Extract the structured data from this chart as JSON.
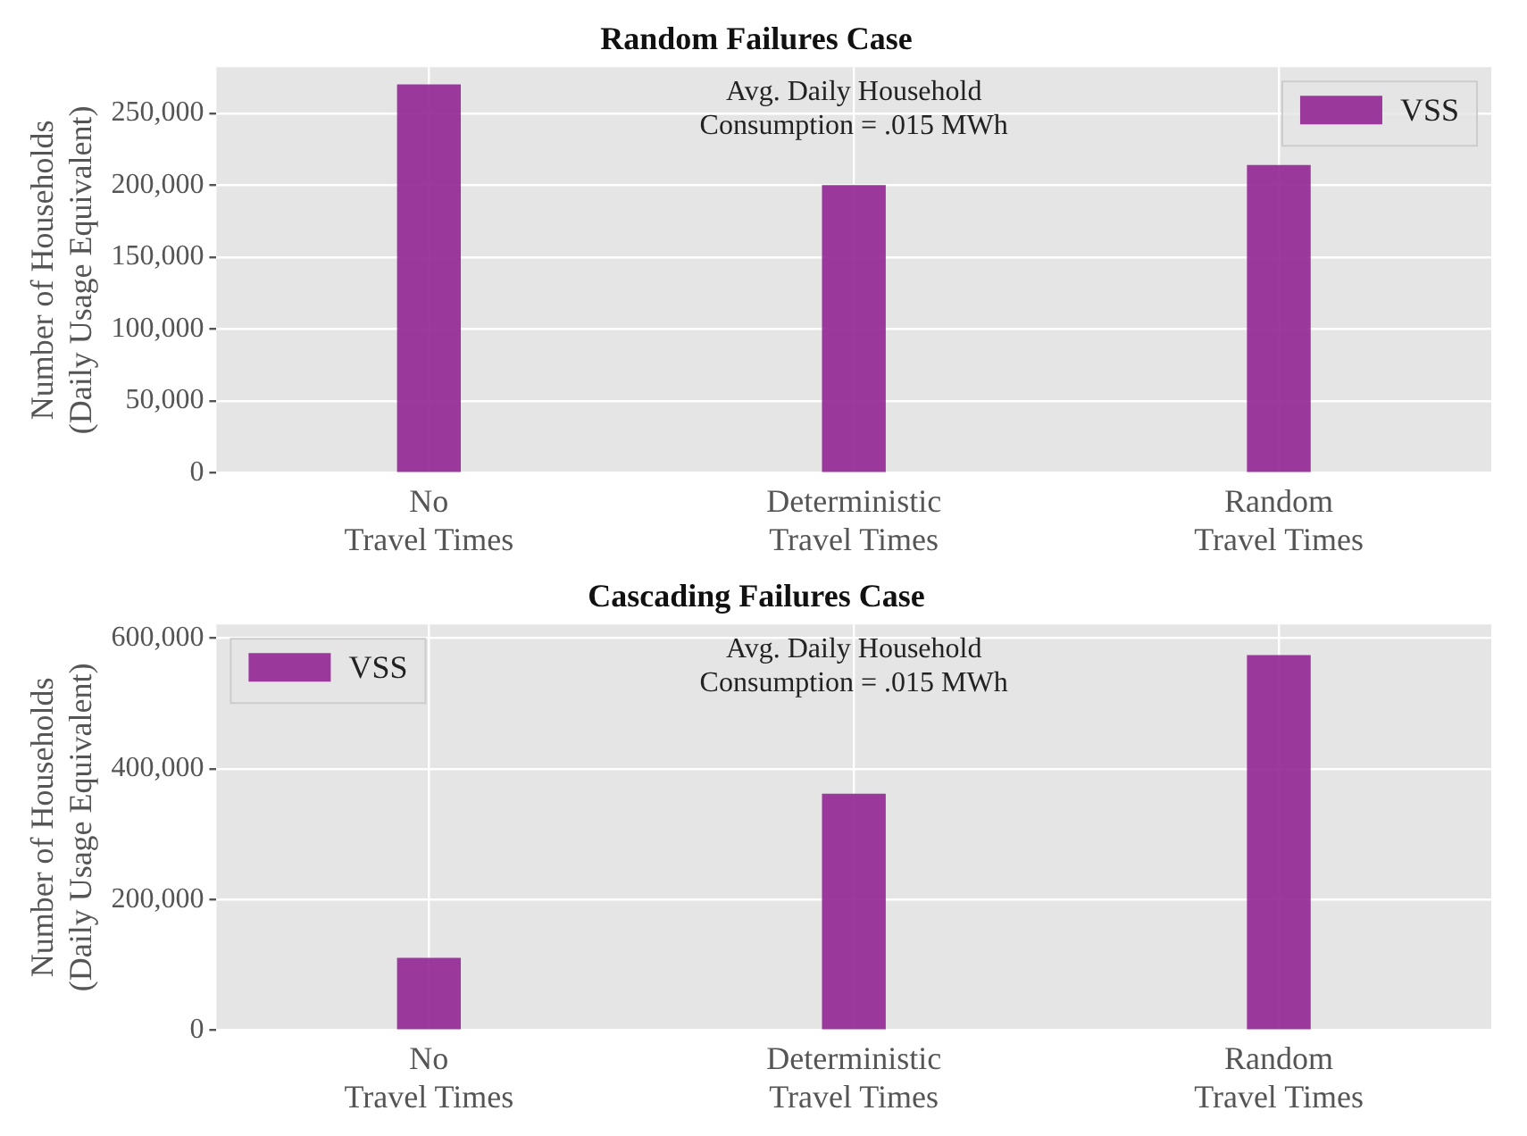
{
  "chart_data": [
    {
      "type": "bar",
      "title": "Random Failures Case",
      "ylabel": "Number of Households (Daily Usage Equivalent)",
      "categories": [
        "No Travel Times",
        "Deterministic Travel Times",
        "Random Travel Times"
      ],
      "series": [
        {
          "name": "VSS",
          "color": "#922592",
          "values": [
            270000,
            200000,
            214000
          ]
        }
      ],
      "ylim": [
        0,
        282000
      ],
      "yticks": [
        {
          "value": 0,
          "label": "0"
        },
        {
          "value": 50000,
          "label": "50,000"
        },
        {
          "value": 100000,
          "label": "100,000"
        },
        {
          "value": 150000,
          "label": "150,000"
        },
        {
          "value": 200000,
          "label": "200,000"
        },
        {
          "value": 250000,
          "label": "250,000"
        }
      ],
      "grid": true,
      "legend": "top right",
      "annotations": [
        "Avg. Daily Household Consumption = .015 MWh"
      ]
    },
    {
      "type": "bar",
      "title": "Cascading Failures Case",
      "ylabel": "Number of Households (Daily Usage Equivalent)",
      "categories": [
        "No Travel Times",
        "Deterministic Travel Times",
        "Random Travel Times"
      ],
      "series": [
        {
          "name": "VSS",
          "color": "#922592",
          "values": [
            111000,
            362000,
            574000
          ]
        }
      ],
      "ylim": [
        0,
        621000
      ],
      "yticks": [
        {
          "value": 0,
          "label": "0"
        },
        {
          "value": 200000,
          "label": "200,000"
        },
        {
          "value": 400000,
          "label": "400,000"
        },
        {
          "value": 600000,
          "label": "600,000"
        }
      ],
      "grid": true,
      "legend": "top left",
      "annotations": [
        "Avg. Daily Household Consumption = .015 MWh"
      ]
    }
  ]
}
